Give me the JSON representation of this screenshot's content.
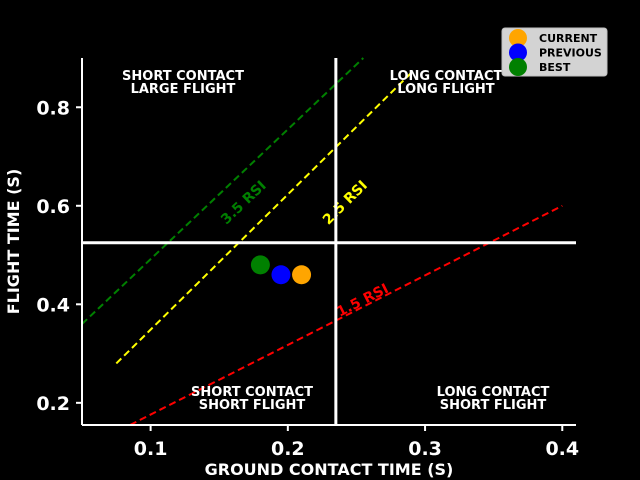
{
  "chart_data": {
    "type": "scatter",
    "title": "",
    "xlabel": "GROUND CONTACT TIME (S)",
    "ylabel": "FLIGHT TIME (S)",
    "xlim": [
      0.05,
      0.41
    ],
    "ylim": [
      0.155,
      0.9
    ],
    "xticks": [
      {
        "value": 0.1,
        "label": "0.1"
      },
      {
        "value": 0.2,
        "label": "0.2"
      },
      {
        "value": 0.3,
        "label": "0.3"
      },
      {
        "value": 0.4,
        "label": "0.4"
      }
    ],
    "yticks": [
      {
        "value": 0.2,
        "label": "0.2"
      },
      {
        "value": 0.4,
        "label": "0.4"
      },
      {
        "value": 0.6,
        "label": "0.6"
      },
      {
        "value": 0.8,
        "label": "0.8"
      }
    ],
    "grid": false,
    "quadrant_lines": {
      "x": 0.235,
      "y": 0.525,
      "color": "#ffffff"
    },
    "quadrant_labels": [
      {
        "line1": "SHORT CONTACT",
        "line2": "LARGE FLIGHT",
        "position": "top-left"
      },
      {
        "line1": "LONG CONTACT",
        "line2": "LONG FLIGHT",
        "position": "top-right"
      },
      {
        "line1": "SHORT CONTACT",
        "line2": "SHORT FLIGHT",
        "position": "bottom-left"
      },
      {
        "line1": "LONG CONTACT",
        "line2": "SHORT FLIGHT",
        "position": "bottom-right"
      }
    ],
    "rsi_lines": [
      {
        "label": "3.5 RSI",
        "color": "#008000",
        "x": [
          0.05,
          0.255
        ],
        "y": [
          0.36,
          0.9
        ],
        "label_at": [
          0.17,
          0.6
        ]
      },
      {
        "label": "2.5 RSI",
        "color": "#ffff00",
        "x": [
          0.075,
          0.29
        ],
        "y": [
          0.28,
          0.87
        ],
        "label_at": [
          0.244,
          0.6
        ]
      },
      {
        "label": "1.5 RSI",
        "color": "#ff0000",
        "x": [
          0.085,
          0.4
        ],
        "y": [
          0.155,
          0.6
        ],
        "label_at": [
          0.256,
          0.4
        ]
      }
    ],
    "series": [
      {
        "name": "CURRENT",
        "color": "#ffa500",
        "x": [
          0.21
        ],
        "y": [
          0.46
        ]
      },
      {
        "name": "PREVIOUS",
        "color": "#0000ff",
        "x": [
          0.195
        ],
        "y": [
          0.46
        ]
      },
      {
        "name": "BEST",
        "color": "#008000",
        "x": [
          0.18
        ],
        "y": [
          0.48
        ]
      }
    ],
    "legend": {
      "position": "top-right"
    }
  }
}
